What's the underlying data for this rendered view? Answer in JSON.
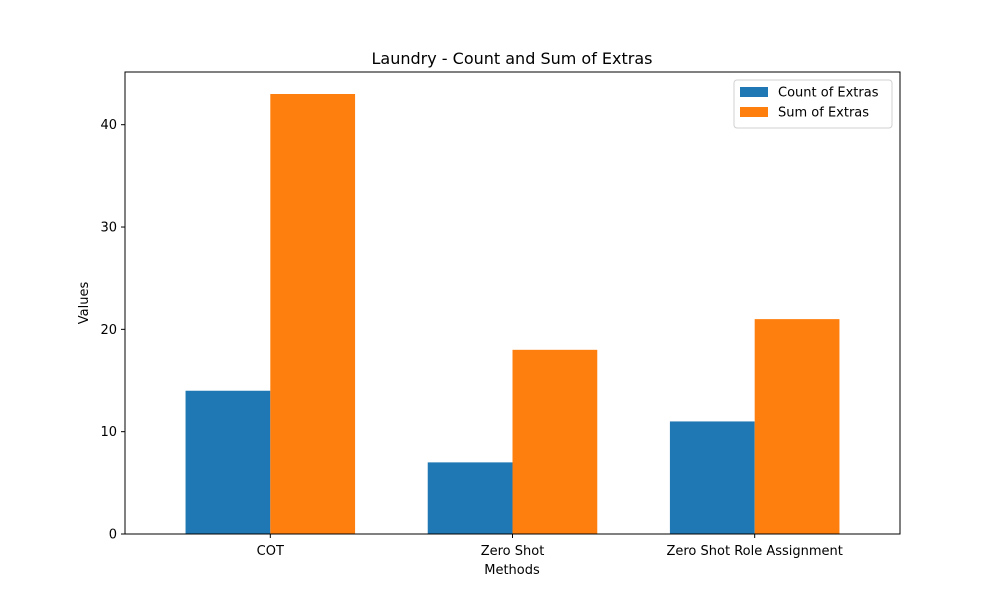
{
  "chart_data": {
    "type": "bar",
    "title": "Laundry - Count and Sum of Extras",
    "xlabel": "Methods",
    "ylabel": "Values",
    "categories": [
      "COT",
      "Zero Shot",
      "Zero Shot Role Assignment"
    ],
    "series": [
      {
        "name": "Count of Extras",
        "values": [
          14,
          7,
          11
        ],
        "color": "#1f77b4"
      },
      {
        "name": "Sum of Extras",
        "values": [
          43,
          18,
          21
        ],
        "color": "#ff7f0e"
      }
    ],
    "ylim": [
      0,
      45.15
    ],
    "yticks": [
      0,
      10,
      20,
      30,
      40
    ],
    "grid": false,
    "legend_position": "top-right"
  }
}
